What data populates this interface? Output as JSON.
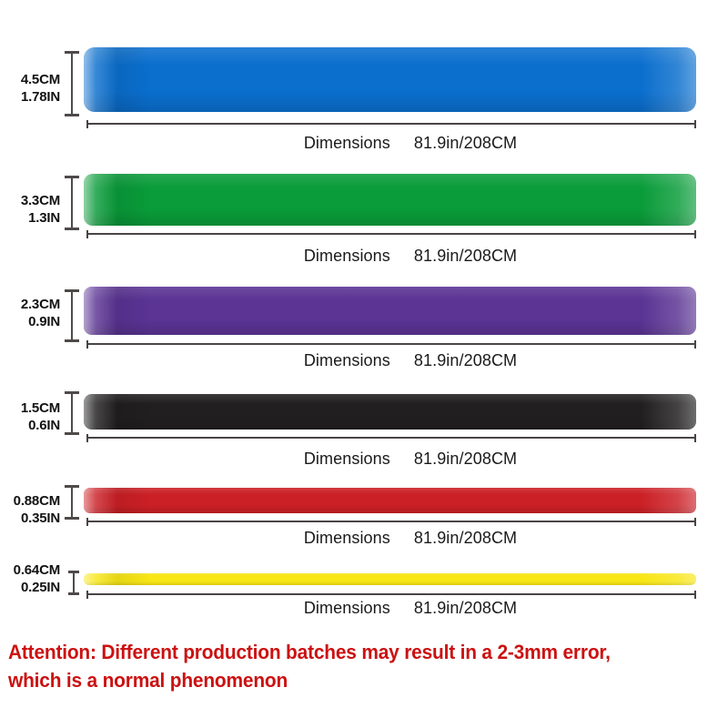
{
  "page": {
    "background": "#ffffff"
  },
  "bands": [
    {
      "id": "blue",
      "color": "#0b6fce",
      "size_cm": "4.5CM",
      "size_in": "1.78IN",
      "dim_label": "Dimensions",
      "dim_value": "81.9in/208CM"
    },
    {
      "id": "green",
      "color": "#0a9c3a",
      "size_cm": "3.3CM",
      "size_in": "1.3IN",
      "dim_label": "Dimensions",
      "dim_value": "81.9in/208CM"
    },
    {
      "id": "purple",
      "color": "#5b3494",
      "size_cm": "2.3CM",
      "size_in": "0.9IN",
      "dim_label": "Dimensions",
      "dim_value": "81.9in/208CM"
    },
    {
      "id": "black",
      "color": "#211f20",
      "size_cm": "1.5CM",
      "size_in": "0.6IN",
      "dim_label": "Dimensions",
      "dim_value": "81.9in/208CM"
    },
    {
      "id": "red",
      "color": "#cb2026",
      "size_cm": "0.88CM",
      "size_in": "0.35IN",
      "dim_label": "Dimensions",
      "dim_value": "81.9in/208CM"
    },
    {
      "id": "yellow",
      "color": "#f8e616",
      "size_cm": "0.64CM",
      "size_in": "0.25IN",
      "dim_label": "Dimensions",
      "dim_value": "81.9in/208CM"
    }
  ],
  "attention": {
    "line1": "Attention: Different production batches may result in a 2-3mm error,",
    "line2": "which is a normal phenomenon",
    "color": "#cc1111"
  }
}
